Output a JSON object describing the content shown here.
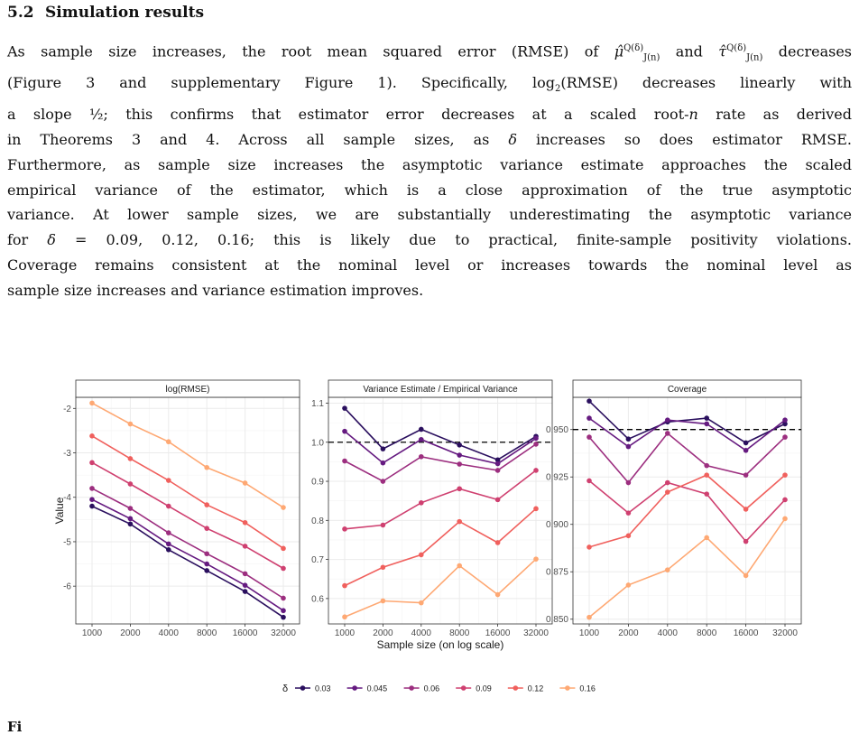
{
  "section": {
    "number": "5.2",
    "title": "Simulation results"
  },
  "paragraph": {
    "l1a": "As sample size increases, the root mean squared error (RMSE) of ",
    "mu": "μ̂",
    "sub_j": "J(n)",
    "sup_q": "Q(δ)",
    "and": " and ",
    "tau": "τ̂",
    "l1b": " decreases",
    "l2a": "(Figure 3 and supplementary Figure 1). Specifically, log",
    "l2sub": "2",
    "l2b": "(RMSE) decreases linearly with",
    "l3a": "a slope ",
    "half": "½",
    "l3b": "; this confirms that estimator error decreases at a scaled root-",
    "n": "n",
    "l3c": " rate as derived",
    "l4a": "in Theorems 3 and 4. Across all sample sizes, as ",
    "delta": "δ",
    "l4b": " increases so does estimator RMSE.",
    "l5": "Furthermore, as sample size increases the asymptotic variance estimate approaches the scaled",
    "l6": "empirical variance of the estimator, which is a close approximation of the true asymptotic",
    "l7": "variance. At lower sample sizes, we are substantially underestimating the asymptotic variance",
    "l8a": "for ",
    "l8b": " = 0.09, 0.12, 0.16; this is likely due to practical, finite-sample positivity violations.",
    "l9": "Coverage remains consistent at the nominal level or increases towards the nominal level as",
    "l10": "sample size increases and variance estimation improves."
  },
  "footer_mark": "Fi",
  "chart_data": [
    {
      "type": "line",
      "title": "log(RMSE)",
      "x": [
        1000,
        2000,
        4000,
        8000,
        16000,
        32000
      ],
      "xscale": "log",
      "ylim": [
        -6.85,
        -1.75
      ],
      "yticks": [
        -2,
        -3,
        -4,
        -5,
        -6
      ],
      "ylabel": "Value",
      "series": [
        {
          "name": "0.03",
          "values": [
            -4.2,
            -4.6,
            -5.18,
            -5.65,
            -6.12,
            -6.7
          ]
        },
        {
          "name": "0.045",
          "values": [
            -4.05,
            -4.48,
            -5.05,
            -5.5,
            -5.98,
            -6.55
          ]
        },
        {
          "name": "0.06",
          "values": [
            -3.8,
            -4.25,
            -4.8,
            -5.27,
            -5.72,
            -6.27
          ]
        },
        {
          "name": "0.09",
          "values": [
            -3.22,
            -3.7,
            -4.2,
            -4.7,
            -5.1,
            -5.6
          ]
        },
        {
          "name": "0.12",
          "values": [
            -2.62,
            -3.13,
            -3.62,
            -4.17,
            -4.57,
            -5.15
          ]
        },
        {
          "name": "0.16",
          "values": [
            -1.88,
            -2.35,
            -2.75,
            -3.33,
            -3.68,
            -4.23
          ]
        }
      ]
    },
    {
      "type": "line",
      "title": "Variance Estimate / Empirical Variance",
      "x": [
        1000,
        2000,
        4000,
        8000,
        16000,
        32000
      ],
      "xscale": "log",
      "ylim": [
        0.535,
        1.115
      ],
      "yticks": [
        1.1,
        1.0,
        0.9,
        0.8,
        0.7,
        0.6
      ],
      "yticklabels": [
        "1.1",
        "1.0",
        "0.9",
        "0.8",
        "0.7",
        "0.6"
      ],
      "reference_line": 1.0,
      "xlabel": "Sample size (on log scale)",
      "series": [
        {
          "name": "0.03",
          "values": [
            1.087,
            0.983,
            1.033,
            0.993,
            0.955,
            1.015
          ]
        },
        {
          "name": "0.045",
          "values": [
            1.028,
            0.947,
            1.007,
            0.967,
            0.945,
            1.01
          ]
        },
        {
          "name": "0.06",
          "values": [
            0.952,
            0.9,
            0.963,
            0.944,
            0.928,
            0.995
          ]
        },
        {
          "name": "0.09",
          "values": [
            0.778,
            0.788,
            0.845,
            0.881,
            0.853,
            0.928
          ]
        },
        {
          "name": "0.12",
          "values": [
            0.633,
            0.68,
            0.712,
            0.797,
            0.743,
            0.83
          ]
        },
        {
          "name": "0.16",
          "values": [
            0.553,
            0.594,
            0.589,
            0.684,
            0.61,
            0.701
          ]
        }
      ]
    },
    {
      "type": "line",
      "title": "Coverage",
      "x": [
        1000,
        2000,
        4000,
        8000,
        16000,
        32000
      ],
      "xscale": "log",
      "ylim": [
        0.8475,
        0.967
      ],
      "yticks": [
        0.95,
        0.925,
        0.9,
        0.875,
        0.85
      ],
      "yticklabels": [
        "0.950",
        "0.925",
        "0.900",
        "0.875",
        "0.850"
      ],
      "reference_line": 0.95,
      "series": [
        {
          "name": "0.03",
          "values": [
            0.965,
            0.945,
            0.954,
            0.956,
            0.943,
            0.953
          ]
        },
        {
          "name": "0.045",
          "values": [
            0.956,
            0.941,
            0.955,
            0.953,
            0.939,
            0.955
          ]
        },
        {
          "name": "0.06",
          "values": [
            0.946,
            0.922,
            0.948,
            0.931,
            0.926,
            0.946
          ]
        },
        {
          "name": "0.09",
          "values": [
            0.923,
            0.906,
            0.922,
            0.916,
            0.891,
            0.913
          ]
        },
        {
          "name": "0.12",
          "values": [
            0.888,
            0.894,
            0.917,
            0.926,
            0.908,
            0.926
          ]
        },
        {
          "name": "0.16",
          "values": [
            0.851,
            0.868,
            0.876,
            0.893,
            0.873,
            0.903
          ]
        }
      ]
    }
  ],
  "xtick_labels": [
    "1000",
    "2000",
    "4000",
    "8000",
    "16000",
    "32000"
  ],
  "legend": {
    "title": "δ",
    "position": "bottom",
    "entries": [
      "0.03",
      "0.045",
      "0.06",
      "0.09",
      "0.12",
      "0.16"
    ]
  },
  "colors": {
    "0.03": "#2a0f5e",
    "0.045": "#651a80",
    "0.06": "#9c2e7f",
    "0.09": "#cf4070",
    "0.12": "#f0605d",
    "0.16": "#fea873",
    "strip_bg": "#ffffff",
    "grid": "#ebebeb"
  }
}
